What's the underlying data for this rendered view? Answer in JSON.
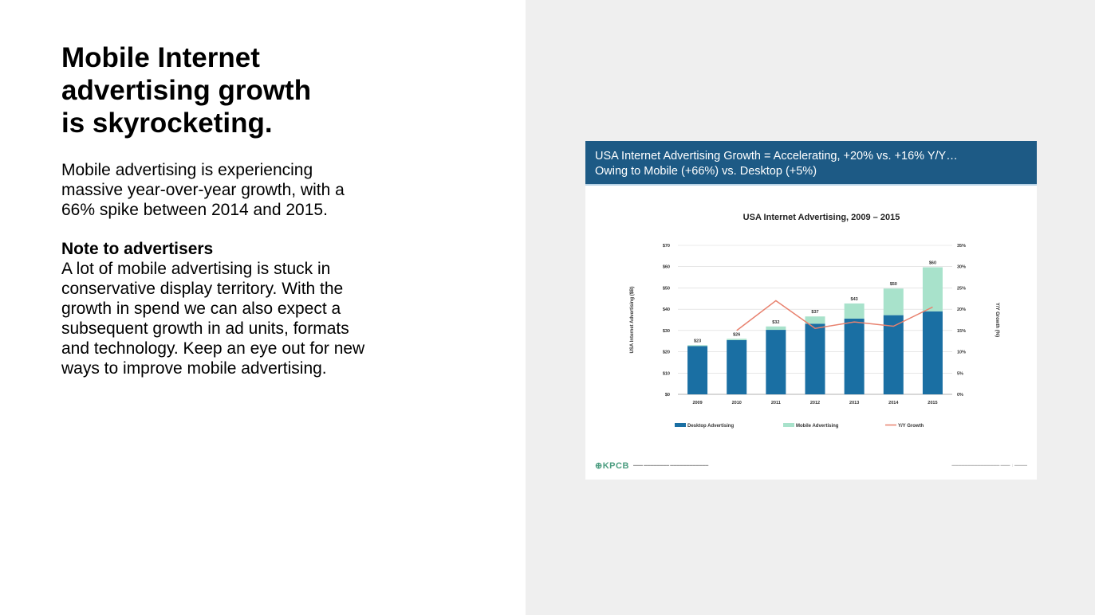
{
  "page": {
    "title_lines": [
      "Mobile Internet",
      "advertising growth",
      "is skyrocketing."
    ],
    "intro_lines": [
      "Mobile advertising is experiencing",
      "massive year-over-year growth, with a",
      "66% spike between 2014 and 2015."
    ],
    "note_heading": "Note to advertisers",
    "note_lines": [
      "A lot of mobile advertising is stuck in",
      "conservative display territory. With the",
      "growth in spend we can also expect a",
      "subsequent growth in ad units, formats",
      "and technology. Keep an eye out for new",
      "ways to improve mobile advertising."
    ]
  },
  "slide": {
    "header_line1": "USA Internet Advertising Growth = Accelerating, +20% vs. +16% Y/Y…",
    "header_line2": "Owing to Mobile (+66%) vs. Desktop (+5%)",
    "logo": "⊕KPCB",
    "colors": {
      "header": "#1d5a85",
      "desktop": "#1a6fa3",
      "mobile": "#a8e2cb",
      "growth": "#e8826f"
    }
  },
  "chart_data": {
    "type": "bar",
    "title": "USA Internet Advertising, 2009 – 2015",
    "ylabel": "USA Internet Advertising ($B)",
    "y2label": "Y/Y Growth (%)",
    "categories": [
      "2009",
      "2010",
      "2011",
      "2012",
      "2013",
      "2014",
      "2015"
    ],
    "ylim": [
      0,
      70
    ],
    "y_ticks": [
      "$0",
      "$10",
      "$20",
      "$30",
      "$40",
      "$50",
      "$60",
      "$70"
    ],
    "y2lim": [
      0,
      35
    ],
    "y2_ticks": [
      "0%",
      "5%",
      "10%",
      "15%",
      "20%",
      "25%",
      "30%",
      "35%"
    ],
    "stacked": true,
    "totals": [
      "$23",
      "$26",
      "$32",
      "$37",
      "$43",
      "$50",
      "$60"
    ],
    "series": [
      {
        "name": "Desktop Advertising",
        "values": [
          22.7,
          25.5,
          30.3,
          33.2,
          35.6,
          37.2,
          39.0
        ]
      },
      {
        "name": "Mobile Advertising",
        "values": [
          0.4,
          0.6,
          1.6,
          3.4,
          7.1,
          12.5,
          20.7
        ]
      },
      {
        "name": "Y/Y Growth",
        "axis": "right",
        "x": [
          "2010",
          "2011",
          "2012",
          "2013",
          "2014",
          "2015"
        ],
        "values": [
          15,
          22,
          15.5,
          17,
          16,
          20.5
        ]
      }
    ],
    "legend": "bottom",
    "grid": true
  }
}
